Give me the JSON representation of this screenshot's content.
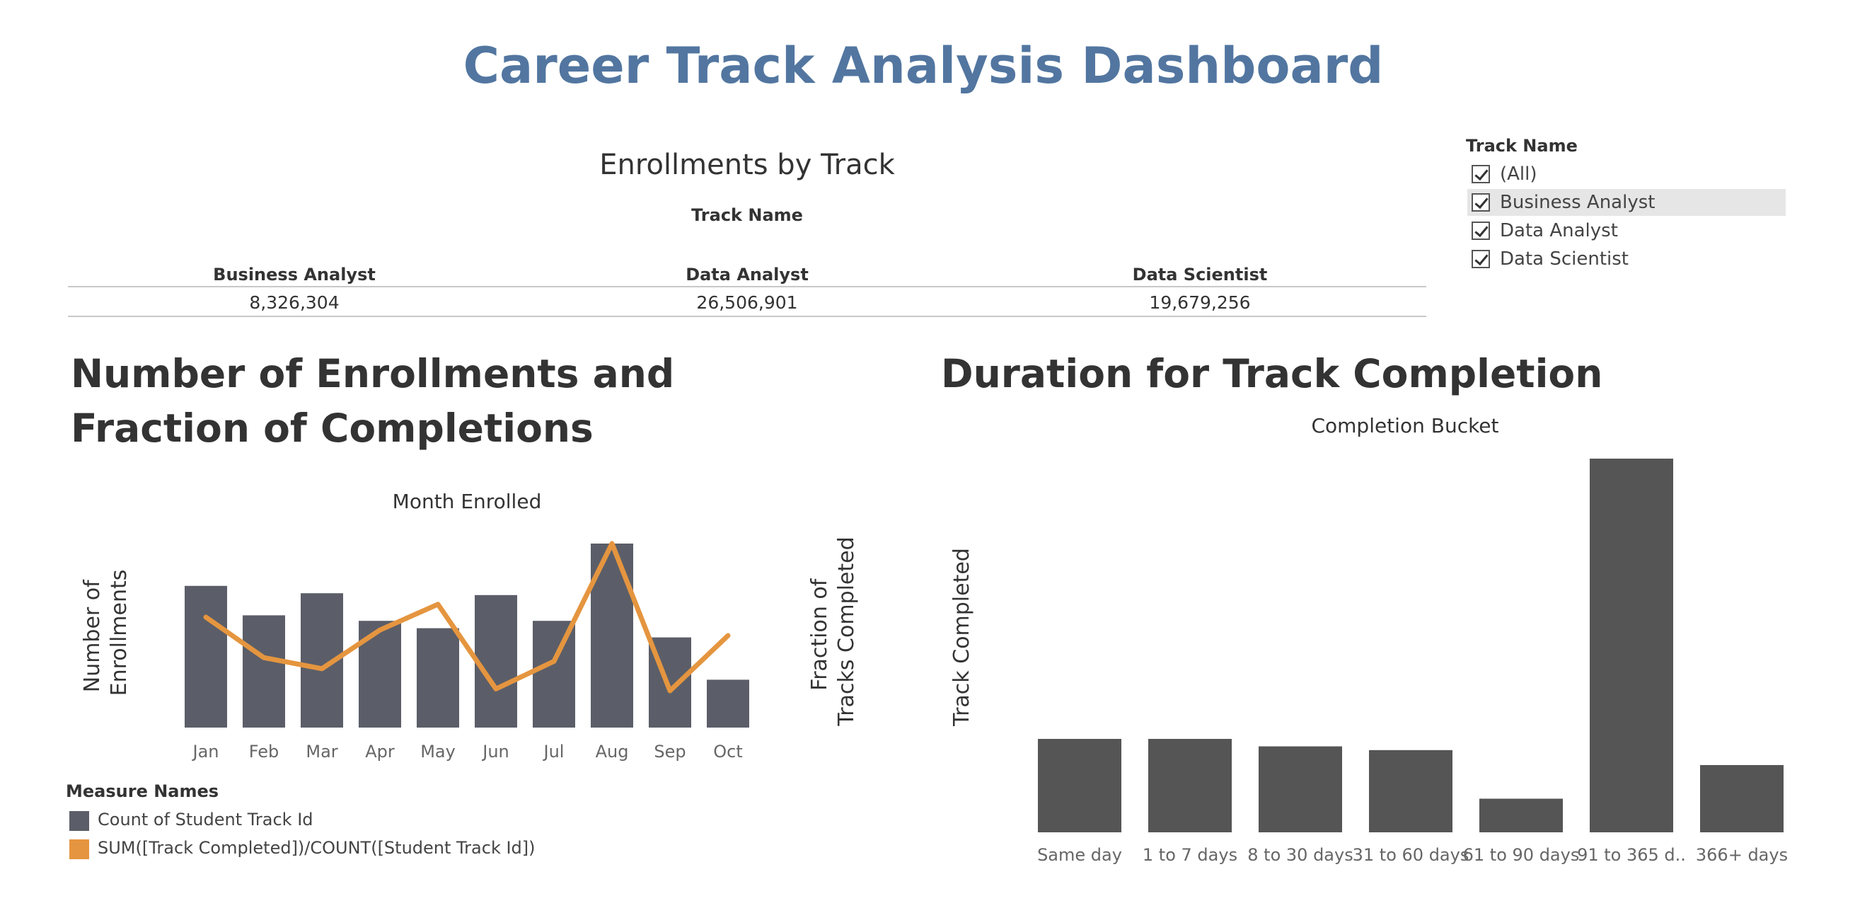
{
  "dashboard": {
    "title": "Career Track Analysis Dashboard"
  },
  "enrollments": {
    "title": "Enrollments by Track",
    "column_header": "Track Name",
    "tracks": [
      {
        "name": "Business Analyst",
        "value": "8,326,304"
      },
      {
        "name": "Data Analyst",
        "value": "26,506,901"
      },
      {
        "name": "Data Scientist",
        "value": "19,679,256"
      }
    ]
  },
  "filter": {
    "title": "Track Name",
    "items": [
      {
        "label": "(All)",
        "checked": true,
        "highlighted": false
      },
      {
        "label": "Business Analyst",
        "checked": true,
        "highlighted": true
      },
      {
        "label": "Data Analyst",
        "checked": true,
        "highlighted": false
      },
      {
        "label": "Data Scientist",
        "checked": true,
        "highlighted": false
      }
    ]
  },
  "section1": {
    "title": "Number of Enrollments and Fraction of Completions"
  },
  "section2": {
    "title": "Duration for Track Completion"
  },
  "legend": {
    "title": "Measure Names",
    "items": [
      {
        "label": "Count of Student Track Id",
        "color": "#5b5e68"
      },
      {
        "label": "SUM([Track Completed])/COUNT([Student Track Id])",
        "color": "#e5953f"
      }
    ]
  },
  "chart_data": [
    {
      "type": "bar",
      "title": "Month Enrolled",
      "xlabel": "Month Enrolled",
      "ylabel": "Number of Enrollments",
      "y2label": "Fraction of Tracks Completed",
      "categories": [
        "Jan",
        "Feb",
        "Mar",
        "Apr",
        "May",
        "Jun",
        "Jul",
        "Aug",
        "Sep",
        "Oct"
      ],
      "series": [
        {
          "name": "Count of Student Track Id",
          "type": "bar",
          "color": "#5b5e68",
          "values": [
            77,
            61,
            73,
            58,
            54,
            72,
            58,
            100,
            49,
            26
          ]
        },
        {
          "name": "SUM([Track Completed])/COUNT([Student Track Id])",
          "type": "line",
          "color": "#e5953f",
          "values": [
            60,
            38,
            32,
            53,
            67,
            21,
            36,
            100,
            20,
            50
          ]
        }
      ],
      "ylim": [
        0,
        100
      ],
      "y2lim": [
        0,
        100
      ],
      "grid": false
    },
    {
      "type": "bar",
      "title": "Completion Bucket",
      "xlabel": "Completion Bucket",
      "ylabel": "Track Completed",
      "categories": [
        "Same day",
        "1 to 7 days",
        "8 to 30 days",
        "31 to 60 days",
        "61 to 90 days",
        "91 to 365 d..",
        "366+ days"
      ],
      "series": [
        {
          "name": "Track Completed",
          "color": "#555555",
          "values": [
            25,
            25,
            23,
            22,
            9,
            100,
            18
          ]
        }
      ],
      "ylim": [
        0,
        100
      ],
      "grid": false
    }
  ]
}
